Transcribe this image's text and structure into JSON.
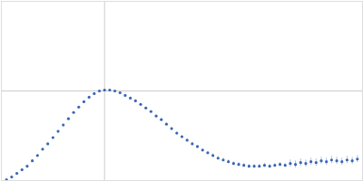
{
  "chart_data": {
    "type": "scatter",
    "color": "#3a66b5",
    "marker": "circle",
    "grid": true,
    "tick_labels": false,
    "xlim": [
      0,
      0.35
    ],
    "xticks": [
      0.1
    ],
    "ylim": [
      0,
      2
    ],
    "yticks": [
      1
    ],
    "x": [
      0.005,
      0.01,
      0.015,
      0.02,
      0.025,
      0.03,
      0.035,
      0.04,
      0.045,
      0.05,
      0.055,
      0.06,
      0.065,
      0.07,
      0.075,
      0.08,
      0.085,
      0.09,
      0.095,
      0.1,
      0.105,
      0.11,
      0.115,
      0.12,
      0.125,
      0.13,
      0.135,
      0.14,
      0.145,
      0.15,
      0.155,
      0.16,
      0.165,
      0.17,
      0.175,
      0.18,
      0.185,
      0.19,
      0.195,
      0.2,
      0.205,
      0.21,
      0.215,
      0.22,
      0.225,
      0.23,
      0.235,
      0.24,
      0.245,
      0.25,
      0.255,
      0.26,
      0.265,
      0.27,
      0.275,
      0.28,
      0.285,
      0.29,
      0.295,
      0.3,
      0.305,
      0.31,
      0.315,
      0.32,
      0.325,
      0.33,
      0.335,
      0.34,
      0.345
    ],
    "values": [
      0.01,
      0.04,
      0.08,
      0.12,
      0.16,
      0.22,
      0.28,
      0.35,
      0.41,
      0.48,
      0.55,
      0.62,
      0.69,
      0.76,
      0.82,
      0.88,
      0.93,
      0.97,
      1.0,
      1.01,
      1.01,
      1.0,
      0.98,
      0.95,
      0.92,
      0.89,
      0.85,
      0.81,
      0.77,
      0.72,
      0.68,
      0.63,
      0.58,
      0.53,
      0.49,
      0.45,
      0.41,
      0.38,
      0.34,
      0.31,
      0.28,
      0.25,
      0.23,
      0.21,
      0.19,
      0.18,
      0.17,
      0.16,
      0.16,
      0.16,
      0.17,
      0.16,
      0.17,
      0.18,
      0.17,
      0.19,
      0.18,
      0.2,
      0.19,
      0.21,
      0.2,
      0.22,
      0.21,
      0.23,
      0.22,
      0.21,
      0.23,
      0.22,
      0.24
    ],
    "errors": [
      0.005,
      0.005,
      0.005,
      0.005,
      0.005,
      0.005,
      0.005,
      0.005,
      0.005,
      0.005,
      0.005,
      0.005,
      0.005,
      0.005,
      0.005,
      0.005,
      0.005,
      0.005,
      0.005,
      0.005,
      0.01,
      0.01,
      0.01,
      0.01,
      0.01,
      0.01,
      0.01,
      0.01,
      0.01,
      0.01,
      0.01,
      0.01,
      0.01,
      0.01,
      0.01,
      0.01,
      0.01,
      0.01,
      0.01,
      0.01,
      0.02,
      0.02,
      0.02,
      0.02,
      0.02,
      0.02,
      0.02,
      0.02,
      0.02,
      0.02,
      0.02,
      0.02,
      0.02,
      0.02,
      0.02,
      0.04,
      0.04,
      0.04,
      0.04,
      0.04,
      0.04,
      0.04,
      0.04,
      0.04,
      0.04,
      0.04,
      0.04,
      0.04,
      0.04
    ]
  }
}
